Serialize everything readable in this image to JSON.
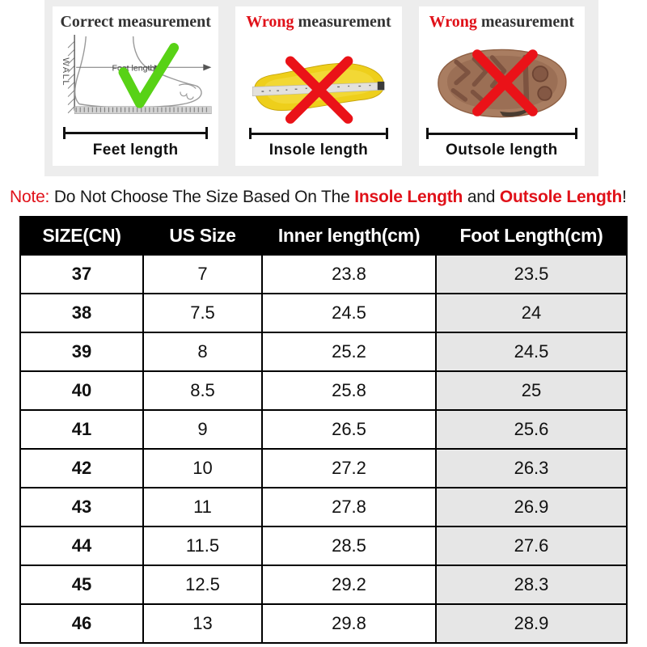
{
  "measurement_guide": {
    "panels": [
      {
        "title_word": "Correct",
        "title_rest": "measurement",
        "caption": "Feet length",
        "diagram_label": "Foot length",
        "wall_label": "WALL"
      },
      {
        "title_word": "Wrong",
        "title_rest": "measurement",
        "caption": "Insole length"
      },
      {
        "title_word": "Wrong",
        "title_rest": "measurement",
        "caption": "Outsole length"
      }
    ]
  },
  "note": {
    "label": "Note:",
    "text1": "Do Not Choose The Size Based On The",
    "em1": "Insole Length",
    "text2": "and",
    "em2": "Outsole Length",
    "suffix": "!"
  },
  "size_table": {
    "headers": [
      "SIZE(CN)",
      "US Size",
      "Inner length(cm)",
      "Foot Length(cm)"
    ],
    "rows": [
      [
        "37",
        "7",
        "23.8",
        "23.5"
      ],
      [
        "38",
        "7.5",
        "24.5",
        "24"
      ],
      [
        "39",
        "8",
        "25.2",
        "24.5"
      ],
      [
        "40",
        "8.5",
        "25.8",
        "25"
      ],
      [
        "41",
        "9",
        "26.5",
        "25.6"
      ],
      [
        "42",
        "10",
        "27.2",
        "26.3"
      ],
      [
        "43",
        "11",
        "27.8",
        "26.9"
      ],
      [
        "44",
        "11.5",
        "28.5",
        "27.6"
      ],
      [
        "45",
        "12.5",
        "29.2",
        "28.3"
      ],
      [
        "46",
        "13",
        "29.8",
        "28.9"
      ]
    ]
  },
  "colors": {
    "accent_red": "#e01119",
    "check_green": "#58d216",
    "header_bg": "#000000",
    "highlight_col_bg": "#e6e6e6",
    "strip_bg": "#ededed",
    "insole_yellow": "#eecf1b",
    "outsole_brown": "#a97d61"
  }
}
